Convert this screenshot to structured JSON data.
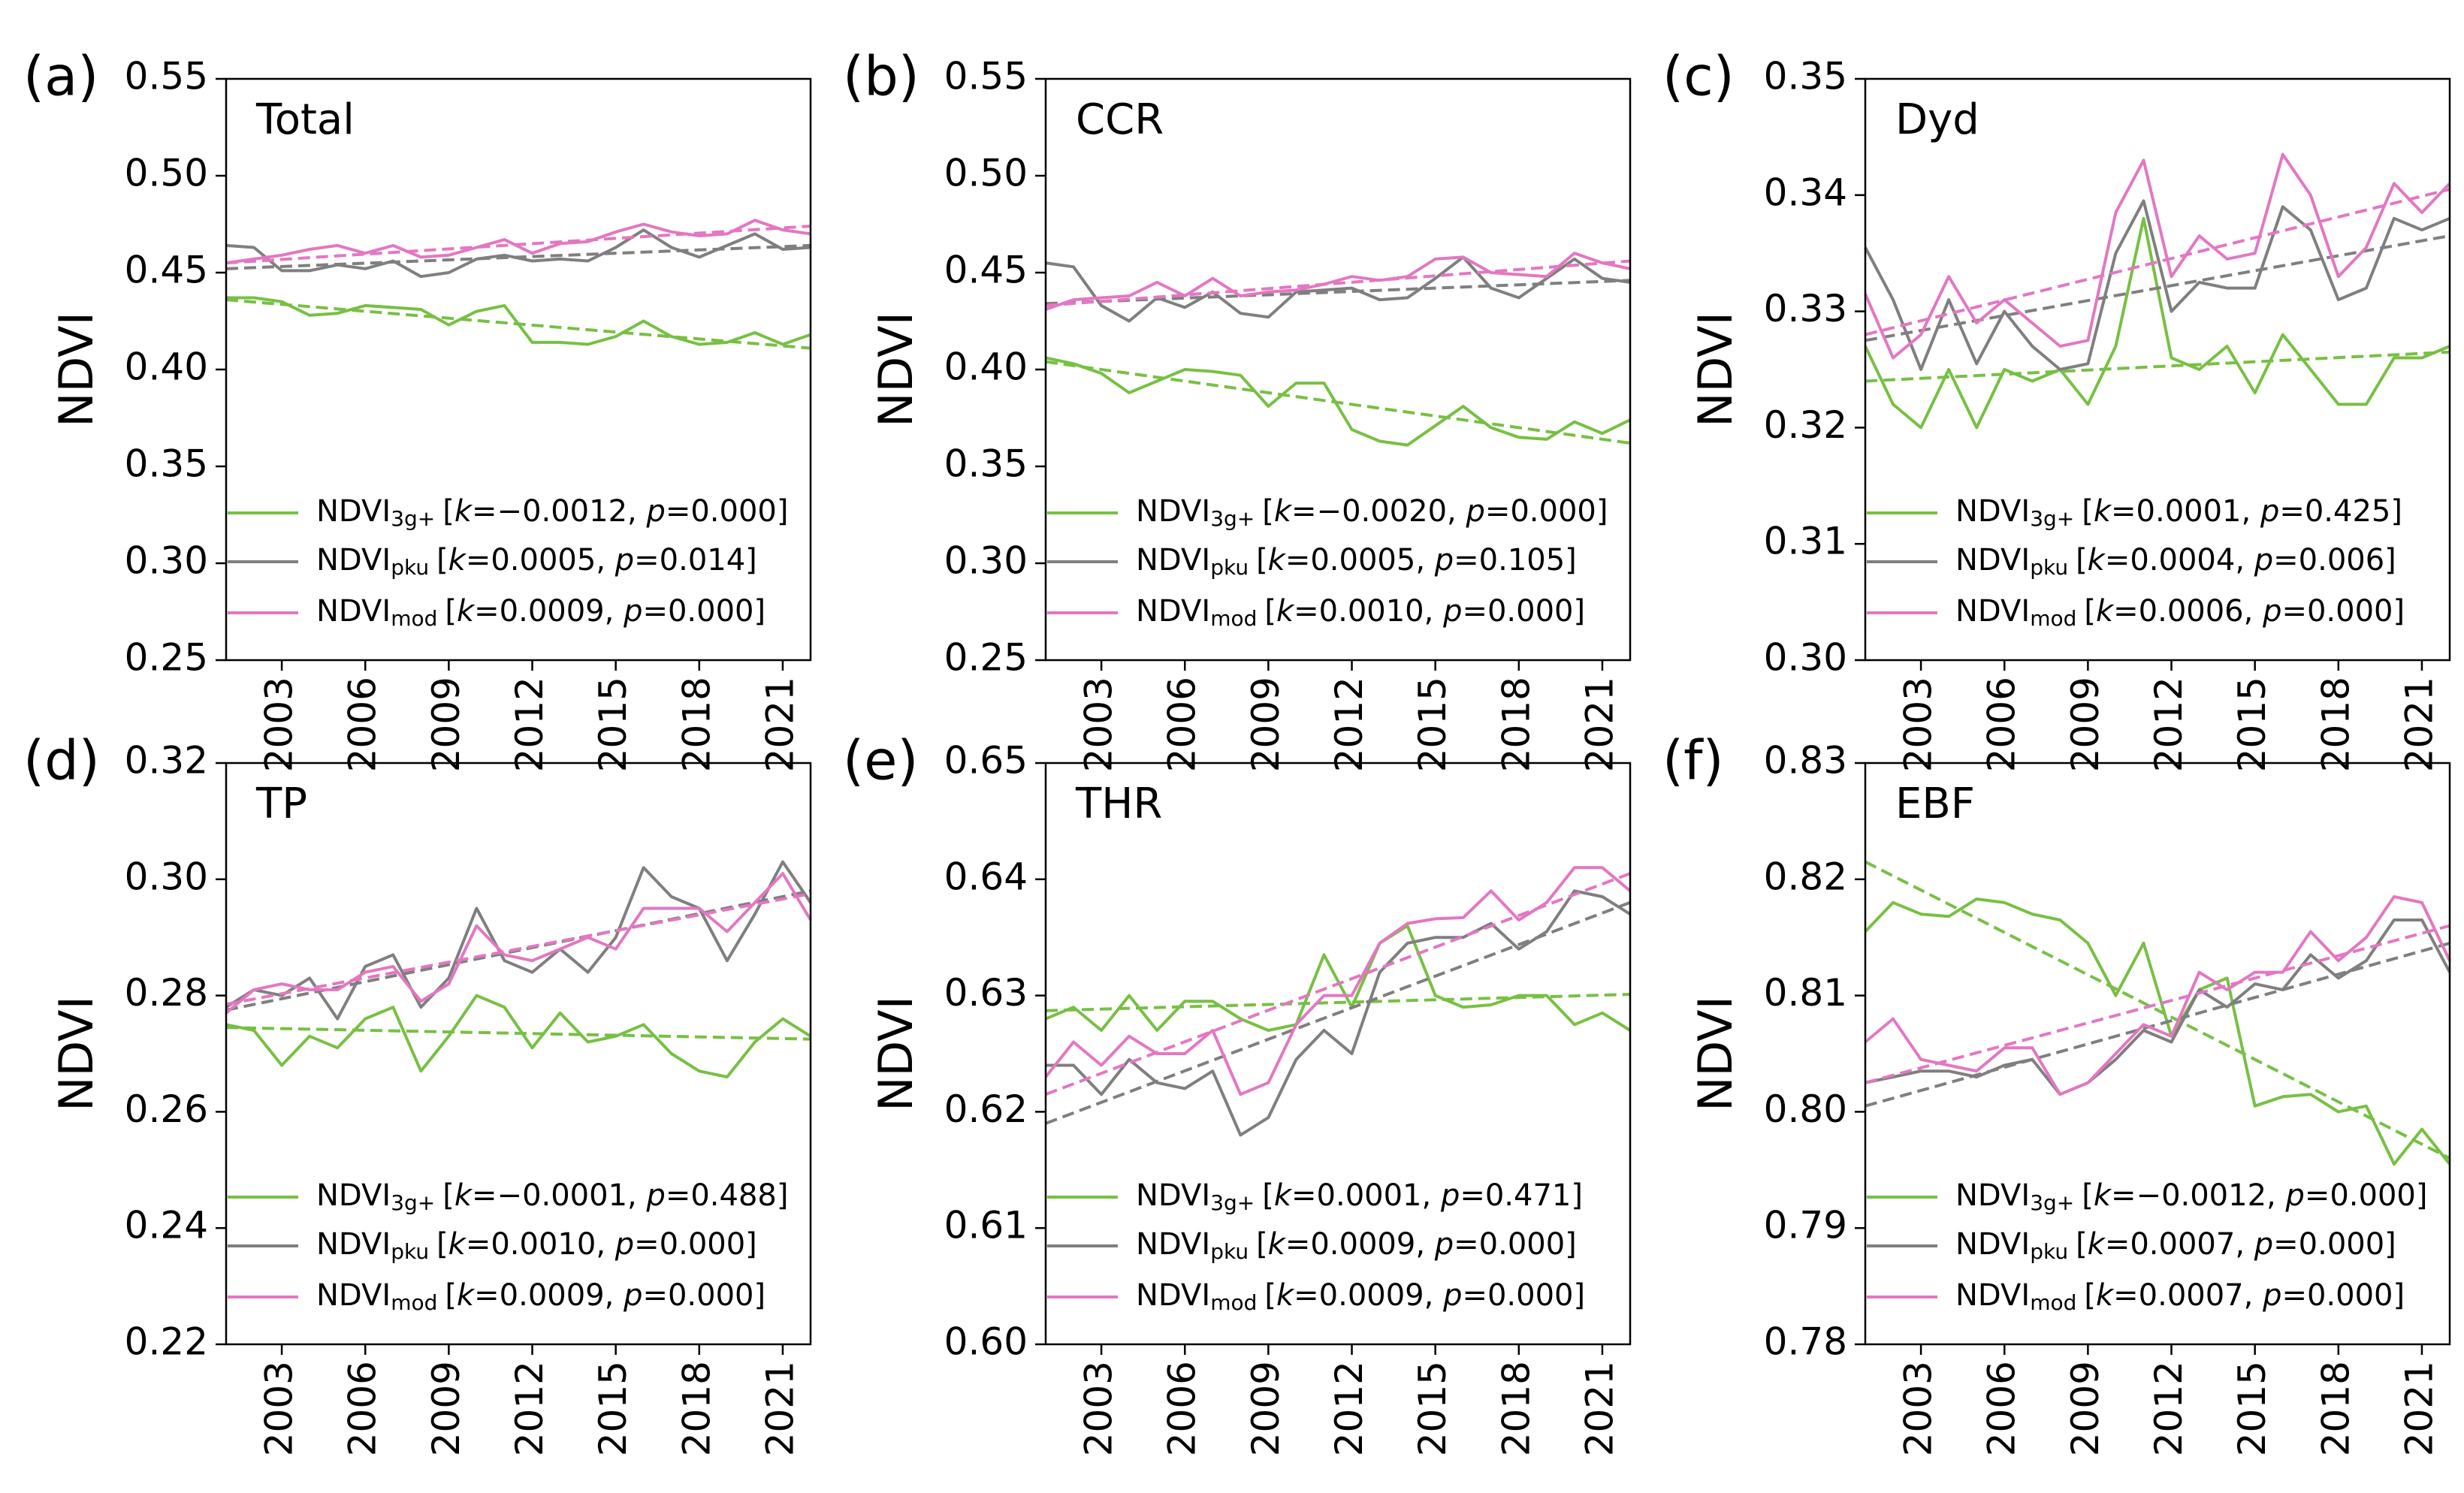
{
  "chart_data": [
    {
      "type": "line",
      "panel_label": "(a)",
      "title": "Total",
      "ylabel": "NDVI",
      "x": [
        2001,
        2002,
        2003,
        2004,
        2005,
        2006,
        2007,
        2008,
        2009,
        2010,
        2011,
        2012,
        2013,
        2014,
        2015,
        2016,
        2017,
        2018,
        2019,
        2020,
        2021,
        2022
      ],
      "xlim": [
        2001,
        2022
      ],
      "xticks": [
        2003,
        2006,
        2009,
        2012,
        2015,
        2018,
        2021
      ],
      "ylim": [
        0.25,
        0.55
      ],
      "yticks": [
        0.25,
        {
          "value": 0.3,
          "label": "0.30"
        },
        0.35,
        {
          "value": 0.4,
          "label": "0.40"
        },
        0.45,
        {
          "value": 0.5,
          "label": "0.50"
        },
        0.55
      ],
      "series": [
        {
          "name": "NDVI",
          "subscript": "3g+",
          "stats": "[k=−0.0012, p=0.000]",
          "color": "#77c043",
          "values": [
            0.437,
            0.437,
            0.435,
            0.428,
            0.429,
            0.433,
            0.432,
            0.431,
            0.423,
            0.43,
            0.433,
            0.414,
            0.414,
            0.413,
            0.417,
            0.425,
            0.417,
            0.413,
            0.414,
            0.419,
            0.413,
            0.418
          ],
          "trend": [
            0.436,
            0.411
          ]
        },
        {
          "name": "NDVI",
          "subscript": "pku",
          "stats": "[k=0.0005, p=0.014]",
          "color": "#7f7f7f",
          "values": [
            0.464,
            0.463,
            0.451,
            0.451,
            0.454,
            0.452,
            0.456,
            0.448,
            0.45,
            0.457,
            0.459,
            0.456,
            0.457,
            0.456,
            0.463,
            0.472,
            0.463,
            0.458,
            0.464,
            0.47,
            0.462,
            0.463
          ],
          "trend": [
            0.452,
            0.464
          ]
        },
        {
          "name": "NDVI",
          "subscript": "mod",
          "stats": "[k=0.0009, p=0.000]",
          "color": "#e377c2",
          "values": [
            0.455,
            0.457,
            0.459,
            0.462,
            0.464,
            0.46,
            0.464,
            0.458,
            0.459,
            0.463,
            0.467,
            0.46,
            0.465,
            0.466,
            0.471,
            0.475,
            0.471,
            0.469,
            0.47,
            0.477,
            0.472,
            0.47
          ],
          "trend": [
            0.455,
            0.474
          ]
        }
      ]
    },
    {
      "type": "line",
      "panel_label": "(b)",
      "title": "CCR",
      "ylabel": "NDVI",
      "x": [
        2001,
        2002,
        2003,
        2004,
        2005,
        2006,
        2007,
        2008,
        2009,
        2010,
        2011,
        2012,
        2013,
        2014,
        2015,
        2016,
        2017,
        2018,
        2019,
        2020,
        2021,
        2022
      ],
      "xlim": [
        2001,
        2022
      ],
      "xticks": [
        2003,
        2006,
        2009,
        2012,
        2015,
        2018,
        2021
      ],
      "ylim": [
        0.25,
        0.55
      ],
      "yticks": [
        0.25,
        {
          "value": 0.3,
          "label": "0.30"
        },
        0.35,
        {
          "value": 0.4,
          "label": "0.40"
        },
        0.45,
        {
          "value": 0.5,
          "label": "0.50"
        },
        0.55
      ],
      "series": [
        {
          "name": "NDVI",
          "subscript": "3g+",
          "stats": "[k=−0.0020, p=0.000]",
          "color": "#77c043",
          "values": [
            0.406,
            0.403,
            0.398,
            0.388,
            0.394,
            0.4,
            0.399,
            0.397,
            0.381,
            0.393,
            0.393,
            0.369,
            0.363,
            0.361,
            0.371,
            0.381,
            0.37,
            0.365,
            0.364,
            0.373,
            0.367,
            0.374
          ],
          "trend": [
            0.404,
            0.362
          ]
        },
        {
          "name": "NDVI",
          "subscript": "pku",
          "stats": "[k=0.0005, p=0.105]",
          "color": "#7f7f7f",
          "values": [
            0.455,
            0.453,
            0.433,
            0.425,
            0.437,
            0.432,
            0.44,
            0.429,
            0.427,
            0.44,
            0.441,
            0.442,
            0.436,
            0.437,
            0.447,
            0.458,
            0.442,
            0.437,
            0.447,
            0.457,
            0.447,
            0.445
          ],
          "trend": [
            0.434,
            0.446
          ]
        },
        {
          "name": "NDVI",
          "subscript": "mod",
          "stats": "[k=0.0010, p=0.000]",
          "color": "#e377c2",
          "values": [
            0.431,
            0.436,
            0.437,
            0.438,
            0.445,
            0.438,
            0.447,
            0.438,
            0.44,
            0.441,
            0.444,
            0.448,
            0.446,
            0.448,
            0.457,
            0.458,
            0.45,
            0.449,
            0.448,
            0.46,
            0.455,
            0.452
          ],
          "trend": [
            0.433,
            0.456
          ]
        }
      ]
    },
    {
      "type": "line",
      "panel_label": "(c)",
      "title": "Dyd",
      "ylabel": "NDVI",
      "x": [
        2001,
        2002,
        2003,
        2004,
        2005,
        2006,
        2007,
        2008,
        2009,
        2010,
        2011,
        2012,
        2013,
        2014,
        2015,
        2016,
        2017,
        2018,
        2019,
        2020,
        2021,
        2022
      ],
      "xlim": [
        2001,
        2022
      ],
      "xticks": [
        2003,
        2006,
        2009,
        2012,
        2015,
        2018,
        2021
      ],
      "ylim": [
        0.3,
        0.35
      ],
      "yticks": [
        {
          "value": 0.3,
          "label": "0.30"
        },
        0.31,
        0.32,
        0.33,
        0.34,
        0.35
      ],
      "series": [
        {
          "name": "NDVI",
          "subscript": "3g+",
          "stats": "[k=0.0001, p=0.425]",
          "color": "#77c043",
          "values": [
            0.327,
            0.322,
            0.32,
            0.325,
            0.32,
            0.325,
            0.324,
            0.325,
            0.322,
            0.327,
            0.338,
            0.326,
            0.325,
            0.327,
            0.323,
            0.328,
            0.325,
            0.322,
            0.322,
            0.326,
            0.326,
            0.327
          ],
          "trend": [
            0.324,
            0.3265
          ]
        },
        {
          "name": "NDVI",
          "subscript": "pku",
          "stats": "[k=0.0004, p=0.006]",
          "color": "#7f7f7f",
          "values": [
            0.3355,
            0.331,
            0.325,
            0.331,
            0.3255,
            0.33,
            0.327,
            0.325,
            0.3255,
            0.335,
            0.3395,
            0.33,
            0.3325,
            0.332,
            0.332,
            0.339,
            0.337,
            0.331,
            0.332,
            0.338,
            0.337,
            0.338
          ],
          "trend": [
            0.3275,
            0.3365
          ]
        },
        {
          "name": "NDVI",
          "subscript": "mod",
          "stats": "[k=0.0006, p=0.000]",
          "color": "#e377c2",
          "values": [
            0.3315,
            0.326,
            0.328,
            0.333,
            0.329,
            0.331,
            0.329,
            0.327,
            0.3275,
            0.3385,
            0.343,
            0.333,
            0.3365,
            0.3345,
            0.335,
            0.3435,
            0.34,
            0.333,
            0.3355,
            0.341,
            0.3385,
            0.341
          ],
          "trend": [
            0.328,
            0.3405
          ]
        }
      ]
    },
    {
      "type": "line",
      "panel_label": "(d)",
      "title": "TP",
      "ylabel": "NDVI",
      "x": [
        2001,
        2002,
        2003,
        2004,
        2005,
        2006,
        2007,
        2008,
        2009,
        2010,
        2011,
        2012,
        2013,
        2014,
        2015,
        2016,
        2017,
        2018,
        2019,
        2020,
        2021,
        2022
      ],
      "xlim": [
        2001,
        2022
      ],
      "xticks": [
        2003,
        2006,
        2009,
        2012,
        2015,
        2018,
        2021
      ],
      "ylim": [
        0.22,
        0.32
      ],
      "yticks": [
        0.22,
        0.24,
        0.26,
        0.28,
        {
          "value": 0.3,
          "label": "0.30"
        },
        0.32
      ],
      "series": [
        {
          "name": "NDVI",
          "subscript": "3g+",
          "stats": "[k=−0.0001, p=0.488]",
          "color": "#77c043",
          "values": [
            0.275,
            0.274,
            0.268,
            0.273,
            0.271,
            0.276,
            0.278,
            0.267,
            0.273,
            0.28,
            0.278,
            0.271,
            0.277,
            0.272,
            0.273,
            0.275,
            0.27,
            0.267,
            0.266,
            0.272,
            0.276,
            0.273
          ],
          "trend": [
            0.2745,
            0.2725
          ]
        },
        {
          "name": "NDVI",
          "subscript": "pku",
          "stats": "[k=0.0010, p=0.000]",
          "color": "#7f7f7f",
          "values": [
            0.278,
            0.281,
            0.28,
            0.283,
            0.276,
            0.285,
            0.287,
            0.278,
            0.283,
            0.295,
            0.286,
            0.284,
            0.288,
            0.284,
            0.29,
            0.302,
            0.297,
            0.295,
            0.286,
            0.294,
            0.303,
            0.296
          ],
          "trend": [
            0.2775,
            0.298
          ]
        },
        {
          "name": "NDVI",
          "subscript": "mod",
          "stats": "[k=0.0009, p=0.000]",
          "color": "#e377c2",
          "values": [
            0.277,
            0.281,
            0.282,
            0.281,
            0.281,
            0.284,
            0.285,
            0.279,
            0.282,
            0.292,
            0.287,
            0.286,
            0.288,
            0.29,
            0.288,
            0.295,
            0.295,
            0.295,
            0.291,
            0.296,
            0.301,
            0.293
          ],
          "trend": [
            0.2785,
            0.2975
          ]
        }
      ]
    },
    {
      "type": "line",
      "panel_label": "(e)",
      "title": "THR",
      "ylabel": "NDVI",
      "x": [
        2001,
        2002,
        2003,
        2004,
        2005,
        2006,
        2007,
        2008,
        2009,
        2010,
        2011,
        2012,
        2013,
        2014,
        2015,
        2016,
        2017,
        2018,
        2019,
        2020,
        2021,
        2022
      ],
      "xlim": [
        2001,
        2022
      ],
      "xticks": [
        2003,
        2006,
        2009,
        2012,
        2015,
        2018,
        2021
      ],
      "ylim": [
        0.6,
        0.65
      ],
      "yticks": [
        {
          "value": 0.6,
          "label": "0.60"
        },
        0.61,
        0.62,
        0.63,
        0.64,
        0.65
      ],
      "series": [
        {
          "name": "NDVI",
          "subscript": "3g+",
          "stats": "[k=0.0001, p=0.471]",
          "color": "#77c043",
          "values": [
            0.628,
            0.629,
            0.627,
            0.63,
            0.627,
            0.6295,
            0.6295,
            0.628,
            0.627,
            0.6275,
            0.6335,
            0.629,
            0.6345,
            0.636,
            0.63,
            0.629,
            0.6292,
            0.63,
            0.63,
            0.6275,
            0.6285,
            0.627
          ],
          "trend": [
            0.6287,
            0.6301
          ]
        },
        {
          "name": "NDVI",
          "subscript": "pku",
          "stats": "[k=0.0009, p=0.000]",
          "color": "#7f7f7f",
          "values": [
            0.624,
            0.624,
            0.6215,
            0.6245,
            0.6225,
            0.622,
            0.6235,
            0.618,
            0.6195,
            0.6245,
            0.627,
            0.625,
            0.632,
            0.6345,
            0.635,
            0.635,
            0.6362,
            0.634,
            0.6355,
            0.639,
            0.6385,
            0.637
          ],
          "trend": [
            0.619,
            0.638
          ]
        },
        {
          "name": "NDVI",
          "subscript": "mod",
          "stats": "[k=0.0009, p=0.000]",
          "color": "#e377c2",
          "values": [
            0.623,
            0.626,
            0.624,
            0.6265,
            0.625,
            0.625,
            0.627,
            0.6215,
            0.6225,
            0.6275,
            0.63,
            0.63,
            0.6345,
            0.6362,
            0.6366,
            0.6367,
            0.639,
            0.6365,
            0.638,
            0.641,
            0.641,
            0.639
          ],
          "trend": [
            0.6215,
            0.6405
          ]
        }
      ]
    },
    {
      "type": "line",
      "panel_label": "(f)",
      "title": "EBF",
      "ylabel": "NDVI",
      "x": [
        2001,
        2002,
        2003,
        2004,
        2005,
        2006,
        2007,
        2008,
        2009,
        2010,
        2011,
        2012,
        2013,
        2014,
        2015,
        2016,
        2017,
        2018,
        2019,
        2020,
        2021,
        2022
      ],
      "xlim": [
        2001,
        2022
      ],
      "xticks": [
        2003,
        2006,
        2009,
        2012,
        2015,
        2018,
        2021
      ],
      "ylim": [
        0.78,
        0.83
      ],
      "yticks": [
        0.78,
        0.79,
        {
          "value": 0.8,
          "label": "0.80"
        },
        0.81,
        0.82,
        0.83
      ],
      "series": [
        {
          "name": "NDVI",
          "subscript": "3g+",
          "stats": "[k=−0.0012, p=0.000]",
          "color": "#77c043",
          "values": [
            0.8155,
            0.818,
            0.817,
            0.8168,
            0.8183,
            0.818,
            0.817,
            0.8165,
            0.8145,
            0.81,
            0.8145,
            0.8065,
            0.8105,
            0.8115,
            0.8005,
            0.8013,
            0.8015,
            0.8,
            0.8005,
            0.7955,
            0.7985,
            0.7955
          ],
          "trend": [
            0.8215,
            0.796
          ]
        },
        {
          "name": "NDVI",
          "subscript": "pku",
          "stats": "[k=0.0007, p=0.000]",
          "color": "#7f7f7f",
          "values": [
            0.8025,
            0.803,
            0.8035,
            0.8035,
            0.803,
            0.804,
            0.8045,
            0.8015,
            0.8025,
            0.8045,
            0.807,
            0.806,
            0.8105,
            0.809,
            0.811,
            0.8105,
            0.8135,
            0.8115,
            0.813,
            0.8165,
            0.8165,
            0.812
          ],
          "trend": [
            0.8005,
            0.8145
          ]
        },
        {
          "name": "NDVI",
          "subscript": "mod",
          "stats": "[k=0.0007, p=0.000]",
          "color": "#e377c2",
          "values": [
            0.806,
            0.808,
            0.8045,
            0.804,
            0.8035,
            0.8055,
            0.8055,
            0.8015,
            0.8025,
            0.805,
            0.8075,
            0.8065,
            0.812,
            0.8105,
            0.812,
            0.812,
            0.8155,
            0.813,
            0.815,
            0.8185,
            0.818,
            0.813
          ],
          "trend": [
            0.8025,
            0.816
          ]
        }
      ]
    }
  ]
}
